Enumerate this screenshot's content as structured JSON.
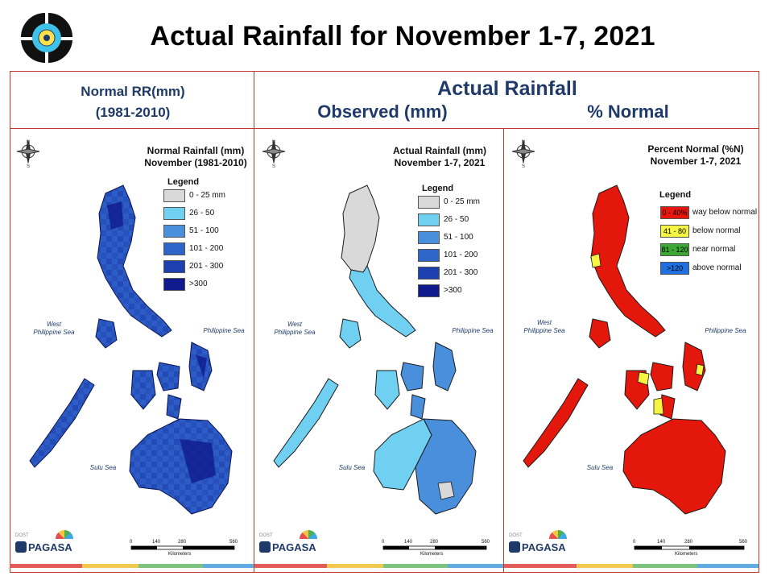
{
  "title": "Actual Rainfall for November 1-7, 2021",
  "headers": {
    "normal_line1": "Normal RR(mm)",
    "normal_line2": "(1981-2010)",
    "actual": "Actual Rainfall",
    "observed": "Observed (mm)",
    "percent": "% Normal"
  },
  "panels": [
    {
      "map_title_1": "Normal Rainfall (mm)",
      "map_title_2": "November (1981-2010)",
      "legend_title": "Legend",
      "legend": [
        {
          "label": "0 - 25 mm",
          "color": "#d9d9d9"
        },
        {
          "label": "26 - 50",
          "color": "#6fd0f2"
        },
        {
          "label": "51 - 100",
          "color": "#4a8fdc"
        },
        {
          "label": "101 - 200",
          "color": "#2e65c9"
        },
        {
          "label": "201 - 300",
          "color": "#1e3fb0"
        },
        {
          "label": ">300",
          "color": "#101a8c"
        }
      ],
      "sea_west_1": "West",
      "sea_west_2": "Philippine Sea",
      "sea_east": "Philippine Sea",
      "sea_sulu": "Sulu Sea",
      "scale": [
        "0",
        "140",
        "280",
        "560"
      ],
      "scale_unit": "Kilometers",
      "brand": "PAGASA",
      "brand_small": "DOST",
      "land_fill": "#2e5cc7",
      "stroke": "#0a1450"
    },
    {
      "map_title_1": "Actual Rainfall (mm)",
      "map_title_2": "November 1-7, 2021",
      "legend_title": "Legend",
      "legend": [
        {
          "label": "0 - 25 mm",
          "color": "#d9d9d9"
        },
        {
          "label": "26 - 50",
          "color": "#6fd0f2"
        },
        {
          "label": "51 - 100",
          "color": "#4a8fdc"
        },
        {
          "label": "101 - 200",
          "color": "#2e65c9"
        },
        {
          "label": "201 - 300",
          "color": "#1e3fb0"
        },
        {
          "label": ">300",
          "color": "#101a8c"
        }
      ],
      "sea_west_1": "West",
      "sea_west_2": "Philippine Sea",
      "sea_east": "Philippine Sea",
      "sea_sulu": "Sulu Sea",
      "scale": [
        "0",
        "140",
        "280",
        "560"
      ],
      "scale_unit": "Kilometers",
      "brand": "PAGASA",
      "brand_small": "DOST",
      "land_fill": "#5fb4e8",
      "stroke": "#1a1a1a"
    },
    {
      "map_title_1": "Percent Normal (%N)",
      "map_title_2": "November 1-7, 2021",
      "legend_title": "Legend",
      "legend": [
        {
          "swatch": "0 - 40%",
          "label": "way below normal",
          "color": "#e8160c"
        },
        {
          "swatch": "41 - 80",
          "label": "below normal",
          "color": "#f5f542"
        },
        {
          "swatch": "81 - 120",
          "label": "near normal",
          "color": "#3aa832"
        },
        {
          "swatch": ">120",
          "label": "above normal",
          "color": "#1e6fe0"
        }
      ],
      "sea_west_1": "West",
      "sea_west_2": "Philippine Sea",
      "sea_east": "Philippine Sea",
      "sea_sulu": "Sulu Sea",
      "scale": [
        "0",
        "140",
        "280",
        "560"
      ],
      "scale_unit": "Kilometers",
      "brand": "PAGASA",
      "brand_small": "DOST",
      "land_fill": "#e4170d",
      "stroke": "#1a1a1a"
    }
  ]
}
